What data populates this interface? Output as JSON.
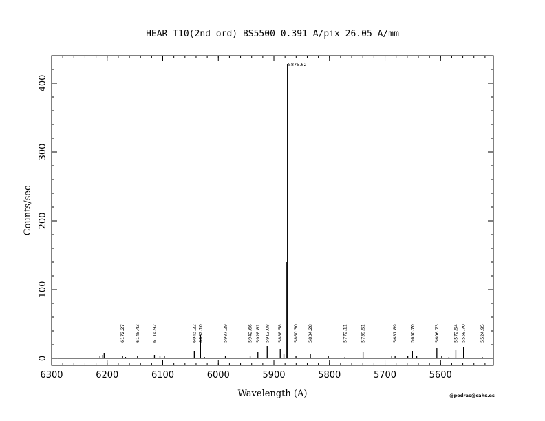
{
  "chart_data": {
    "type": "line",
    "title": "HEAR  T10(2nd ord)  BS5500  0.391 A/pix  26.05 A/mm",
    "xlabel": "Wavelength (A)",
    "ylabel": "Counts/sec",
    "credit": "@pedras@cahs.es",
    "xlim": [
      6300,
      5505
    ],
    "ylim": [
      -10,
      440
    ],
    "x_ticks": [
      6300,
      6200,
      6100,
      6000,
      5900,
      5800,
      5700,
      5600
    ],
    "x_tick_labels": [
      "6300",
      "6200",
      "6100",
      "6000",
      "5900",
      "5800",
      "5700",
      "5600"
    ],
    "y_ticks": [
      0,
      100,
      200,
      300,
      400
    ],
    "y_tick_labels": [
      "0",
      "100",
      "200",
      "300",
      "400"
    ],
    "grid": false,
    "spectrum_range": [
      6290,
      5513
    ],
    "lines": [
      {
        "x": 6213.0,
        "y": 3
      },
      {
        "x": 6208.0,
        "y": 5
      },
      {
        "x": 6205.5,
        "y": 8
      },
      {
        "x": 6172.27,
        "y": 3,
        "label": "6172.27"
      },
      {
        "x": 6167.0,
        "y": 2
      },
      {
        "x": 6145.43,
        "y": 3,
        "label": "6145.43"
      },
      {
        "x": 6114.92,
        "y": 5,
        "label": "6114.92"
      },
      {
        "x": 6105.0,
        "y": 4
      },
      {
        "x": 6097.0,
        "y": 3
      },
      {
        "x": 6043.22,
        "y": 11,
        "label": "6043.22"
      },
      {
        "x": 6032.1,
        "y": 34,
        "label": "6032.10"
      },
      {
        "x": 6025.0,
        "y": 2
      },
      {
        "x": 5987.29,
        "y": 3,
        "label": "5987.29"
      },
      {
        "x": 5942.66,
        "y": 3,
        "label": "5942.66"
      },
      {
        "x": 5928.81,
        "y": 9,
        "label": "5928.81"
      },
      {
        "x": 5912.08,
        "y": 18,
        "label": "5912.08"
      },
      {
        "x": 5888.58,
        "y": 13,
        "label": "5888.58"
      },
      {
        "x": 5882.0,
        "y": 6
      },
      {
        "x": 5877.5,
        "y": 140
      },
      {
        "x": 5875.62,
        "y": 428,
        "label": "5875.62"
      },
      {
        "x": 5860.3,
        "y": 4,
        "label": "5860.30"
      },
      {
        "x": 5834.28,
        "y": 6,
        "label": "5834.28"
      },
      {
        "x": 5802.0,
        "y": 3
      },
      {
        "x": 5772.11,
        "y": 2,
        "label": "5772.11"
      },
      {
        "x": 5739.51,
        "y": 10,
        "label": "5739.51"
      },
      {
        "x": 5688.0,
        "y": 3
      },
      {
        "x": 5681.89,
        "y": 3,
        "label": "5681.89"
      },
      {
        "x": 5659.0,
        "y": 3
      },
      {
        "x": 5650.7,
        "y": 11,
        "label": "5650.70"
      },
      {
        "x": 5643.0,
        "y": 3
      },
      {
        "x": 5606.73,
        "y": 15,
        "label": "5606.73"
      },
      {
        "x": 5598.0,
        "y": 3
      },
      {
        "x": 5585.0,
        "y": 2
      },
      {
        "x": 5572.54,
        "y": 12,
        "label": "5572.54"
      },
      {
        "x": 5558.7,
        "y": 17,
        "label": "5558.70"
      },
      {
        "x": 5524.95,
        "y": 2,
        "label": "5524.95"
      }
    ]
  }
}
